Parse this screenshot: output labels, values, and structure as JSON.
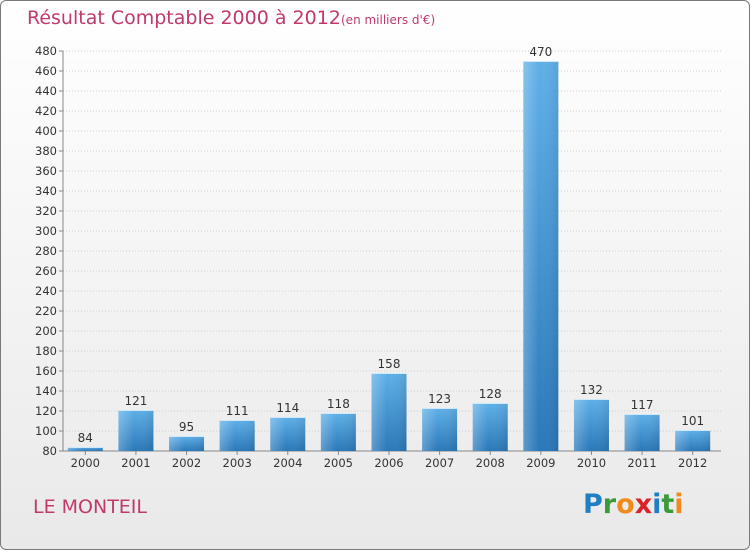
{
  "header": {
    "title": "Résultat Comptable 2000 à 2012",
    "subtitle": "(en milliers d'€)"
  },
  "footer": {
    "commune": "LE MONTEIL",
    "logo": [
      "P",
      "r",
      "o",
      "x",
      "i",
      "t",
      "i"
    ],
    "logo_colors": [
      "#1f7fc4",
      "#3a9a3a",
      "#f08a1c",
      "#d9222a",
      "#1f7fc4",
      "#3a9a3a",
      "#f08a1c"
    ]
  },
  "colors": {
    "text": "#c0396b",
    "bar_top": "#5fb0e8",
    "bar_bottom": "#2a78b8",
    "label": "#333333",
    "grid": "#cfcfcf"
  },
  "chart_data": {
    "type": "bar",
    "title": "Résultat Comptable 2000 à 2012",
    "subtitle": "(en milliers d'€)",
    "categories": [
      "2000",
      "2001",
      "2002",
      "2003",
      "2004",
      "2005",
      "2006",
      "2007",
      "2008",
      "2009",
      "2010",
      "2011",
      "2012"
    ],
    "values": [
      84,
      121,
      95,
      111,
      114,
      118,
      158,
      123,
      128,
      470,
      132,
      117,
      101
    ],
    "ylim": [
      80,
      480
    ],
    "yticks": [
      80,
      100,
      120,
      140,
      160,
      180,
      200,
      220,
      240,
      260,
      280,
      300,
      320,
      340,
      360,
      380,
      400,
      420,
      440,
      460,
      480
    ],
    "grid": true,
    "xlabel": "",
    "ylabel": ""
  }
}
